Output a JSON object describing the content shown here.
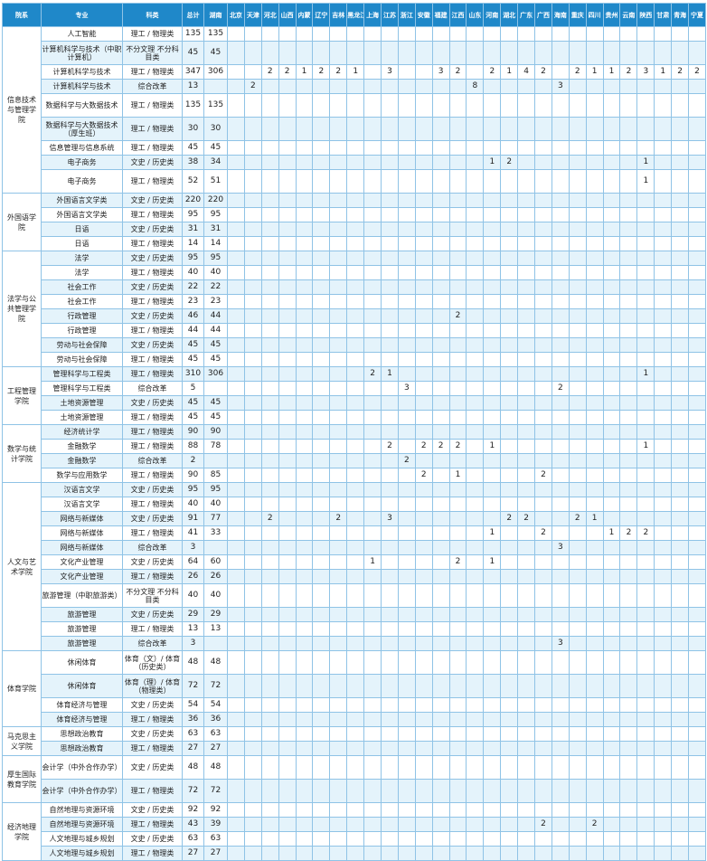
{
  "provinces": [
    "北京",
    "天津",
    "河北",
    "山西",
    "内蒙",
    "辽宁",
    "吉林",
    "黑龙江",
    "上海",
    "江苏",
    "浙江",
    "安徽",
    "福建",
    "江西",
    "山东",
    "河南",
    "湖北",
    "广东",
    "广西",
    "海南",
    "重庆",
    "四川",
    "贵州",
    "云南",
    "陕西",
    "甘肃",
    "青海",
    "宁夏"
  ],
  "headers": {
    "college": "院系",
    "major": "专业",
    "category": "科类",
    "total": "总计",
    "hunan": "湖南"
  },
  "groups": [
    {
      "college": "信息技术与管理学院",
      "rows": [
        {
          "major": "人工智能",
          "category": "理工 / 物理类",
          "total": "135",
          "hunan": "135",
          "counts": {}
        },
        {
          "major": "计算机科学与技术（中职计算机）",
          "category": "不分文理 不分科目类",
          "total": "45",
          "hunan": "45",
          "counts": {},
          "tall": true
        },
        {
          "major": "计算机科学与技术",
          "category": "理工 / 物理类",
          "total": "347",
          "hunan": "306",
          "counts": {
            "2": "2",
            "3": "2",
            "4": "1",
            "5": "2",
            "6": "2",
            "7": "1",
            "9": "3",
            "12": "3",
            "13": "2",
            "15": "2",
            "16": "1",
            "17": "4",
            "18": "2",
            "20": "2",
            "21": "1",
            "22": "1",
            "23": "2",
            "24": "3",
            "25": "1",
            "26": "2",
            "27": "2"
          }
        },
        {
          "major": "计算机科学与技术",
          "category": "综合改革",
          "total": "13",
          "hunan": "",
          "counts": {
            "1": "2",
            "14": "8",
            "19": "3"
          }
        },
        {
          "major": "数据科学与大数据技术",
          "category": "理工 / 物理类",
          "total": "135",
          "hunan": "135",
          "counts": {},
          "tall": true
        },
        {
          "major": "数据科学与大数据技术（厚生班）",
          "category": "理工 / 物理类",
          "total": "30",
          "hunan": "30",
          "counts": {},
          "tall": true
        },
        {
          "major": "信息管理与信息系统",
          "category": "理工 / 物理类",
          "total": "45",
          "hunan": "45",
          "counts": {}
        },
        {
          "major": "电子商务",
          "category": "文史 / 历史类",
          "total": "38",
          "hunan": "34",
          "counts": {
            "15": "1",
            "16": "2",
            "24": "1"
          }
        },
        {
          "major": "电子商务",
          "category": "理工 / 物理类",
          "total": "52",
          "hunan": "51",
          "counts": {
            "24": "1"
          },
          "tall": true
        }
      ]
    },
    {
      "college": "外国语学院",
      "rows": [
        {
          "major": "外国语言文学类",
          "category": "文史 / 历史类",
          "total": "220",
          "hunan": "220",
          "counts": {}
        },
        {
          "major": "外国语言文学类",
          "category": "理工 / 物理类",
          "total": "95",
          "hunan": "95",
          "counts": {}
        },
        {
          "major": "日语",
          "category": "文史 / 历史类",
          "total": "31",
          "hunan": "31",
          "counts": {}
        },
        {
          "major": "日语",
          "category": "理工 / 物理类",
          "total": "14",
          "hunan": "14",
          "counts": {}
        }
      ]
    },
    {
      "college": "法学与公共管理学院",
      "rows": [
        {
          "major": "法学",
          "category": "文史 / 历史类",
          "total": "95",
          "hunan": "95",
          "counts": {}
        },
        {
          "major": "法学",
          "category": "理工 / 物理类",
          "total": "40",
          "hunan": "40",
          "counts": {}
        },
        {
          "major": "社会工作",
          "category": "文史 / 历史类",
          "total": "22",
          "hunan": "22",
          "counts": {}
        },
        {
          "major": "社会工作",
          "category": "理工 / 物理类",
          "total": "23",
          "hunan": "23",
          "counts": {}
        },
        {
          "major": "行政管理",
          "category": "文史 / 历史类",
          "total": "46",
          "hunan": "44",
          "counts": {
            "13": "2"
          }
        },
        {
          "major": "行政管理",
          "category": "理工 / 物理类",
          "total": "44",
          "hunan": "44",
          "counts": {}
        },
        {
          "major": "劳动与社会保障",
          "category": "文史 / 历史类",
          "total": "45",
          "hunan": "45",
          "counts": {}
        },
        {
          "major": "劳动与社会保障",
          "category": "理工 / 物理类",
          "total": "45",
          "hunan": "45",
          "counts": {}
        }
      ]
    },
    {
      "college": "工程管理学院",
      "rows": [
        {
          "major": "管理科学与工程类",
          "category": "理工 / 物理类",
          "total": "310",
          "hunan": "306",
          "counts": {
            "8": "2",
            "9": "1",
            "24": "1"
          }
        },
        {
          "major": "管理科学与工程类",
          "category": "综合改革",
          "total": "5",
          "hunan": "",
          "counts": {
            "10": "3",
            "19": "2"
          }
        },
        {
          "major": "土地资源管理",
          "category": "文史 / 历史类",
          "total": "45",
          "hunan": "45",
          "counts": {}
        },
        {
          "major": "土地资源管理",
          "category": "理工 / 物理类",
          "total": "45",
          "hunan": "45",
          "counts": {}
        }
      ]
    },
    {
      "college": "数学与统计学院",
      "rows": [
        {
          "major": "经济统计学",
          "category": "理工 / 物理类",
          "total": "90",
          "hunan": "90",
          "counts": {}
        },
        {
          "major": "金融数学",
          "category": "理工 / 物理类",
          "total": "88",
          "hunan": "78",
          "counts": {
            "9": "2",
            "11": "2",
            "12": "2",
            "13": "2",
            "15": "1",
            "24": "1"
          }
        },
        {
          "major": "金融数学",
          "category": "综合改革",
          "total": "2",
          "hunan": "",
          "counts": {
            "10": "2"
          }
        },
        {
          "major": "数学与应用数学",
          "category": "理工 / 物理类",
          "total": "90",
          "hunan": "85",
          "counts": {
            "11": "2",
            "13": "1",
            "18": "2"
          }
        }
      ]
    },
    {
      "college": "人文与艺术学院",
      "rows": [
        {
          "major": "汉语言文学",
          "category": "文史 / 历史类",
          "total": "95",
          "hunan": "95",
          "counts": {}
        },
        {
          "major": "汉语言文学",
          "category": "理工 / 物理类",
          "total": "40",
          "hunan": "40",
          "counts": {}
        },
        {
          "major": "网络与新媒体",
          "category": "文史 / 历史类",
          "total": "91",
          "hunan": "77",
          "counts": {
            "2": "2",
            "6": "2",
            "9": "3",
            "16": "2",
            "17": "2",
            "20": "2",
            "21": "1"
          }
        },
        {
          "major": "网络与新媒体",
          "category": "理工 / 物理类",
          "total": "41",
          "hunan": "33",
          "counts": {
            "15": "1",
            "18": "2",
            "22": "1",
            "23": "2",
            "24": "2"
          }
        },
        {
          "major": "网络与新媒体",
          "category": "综合改革",
          "total": "3",
          "hunan": "",
          "counts": {
            "19": "3"
          }
        },
        {
          "major": "文化产业管理",
          "category": "文史 / 历史类",
          "total": "64",
          "hunan": "60",
          "counts": {
            "8": "1",
            "13": "2",
            "15": "1"
          }
        },
        {
          "major": "文化产业管理",
          "category": "理工 / 物理类",
          "total": "26",
          "hunan": "26",
          "counts": {}
        },
        {
          "major": "旅游管理（中职旅游类）",
          "category": "不分文理 不分科目类",
          "total": "40",
          "hunan": "40",
          "counts": {},
          "tall": true
        },
        {
          "major": "旅游管理",
          "category": "文史 / 历史类",
          "total": "29",
          "hunan": "29",
          "counts": {}
        },
        {
          "major": "旅游管理",
          "category": "理工 / 物理类",
          "total": "13",
          "hunan": "13",
          "counts": {}
        },
        {
          "major": "旅游管理",
          "category": "综合改革",
          "total": "3",
          "hunan": "",
          "counts": {
            "19": "3"
          }
        }
      ]
    },
    {
      "college": "体育学院",
      "rows": [
        {
          "major": "休闲体育",
          "category": "体育（文）/ 体育（历史类）",
          "total": "48",
          "hunan": "48",
          "counts": {},
          "tall": true
        },
        {
          "major": "休闲体育",
          "category": "体育（理）/ 体育（物理类）",
          "total": "72",
          "hunan": "72",
          "counts": {},
          "tall": true
        },
        {
          "major": "体育经济与管理",
          "category": "文史 / 历史类",
          "total": "54",
          "hunan": "54",
          "counts": {}
        },
        {
          "major": "体育经济与管理",
          "category": "理工 / 物理类",
          "total": "36",
          "hunan": "36",
          "counts": {}
        }
      ]
    },
    {
      "college": "马克思主义学院",
      "rows": [
        {
          "major": "思想政治教育",
          "category": "文史 / 历史类",
          "total": "63",
          "hunan": "63",
          "counts": {}
        },
        {
          "major": "思想政治教育",
          "category": "理工 / 物理类",
          "total": "27",
          "hunan": "27",
          "counts": {}
        }
      ]
    },
    {
      "college": "厚生国际教育学院",
      "rows": [
        {
          "major": "会计学（中外合作办学）",
          "category": "文史 / 历史类",
          "total": "48",
          "hunan": "48",
          "counts": {},
          "tall": true
        },
        {
          "major": "会计学（中外合作办学）",
          "category": "理工 / 物理类",
          "total": "72",
          "hunan": "72",
          "counts": {},
          "tall": true
        }
      ]
    },
    {
      "college": "经济地理学院",
      "rows": [
        {
          "major": "自然地理与资源环境",
          "category": "文史 / 历史类",
          "total": "92",
          "hunan": "92",
          "counts": {}
        },
        {
          "major": "自然地理与资源环境",
          "category": "理工 / 物理类",
          "total": "43",
          "hunan": "39",
          "counts": {
            "18": "2",
            "21": "2"
          }
        },
        {
          "major": "人文地理与城乡规划",
          "category": "文史 / 历史类",
          "total": "63",
          "hunan": "63",
          "counts": {}
        },
        {
          "major": "人文地理与城乡规划",
          "category": "理工 / 物理类",
          "total": "27",
          "hunan": "27",
          "counts": {}
        }
      ]
    }
  ]
}
